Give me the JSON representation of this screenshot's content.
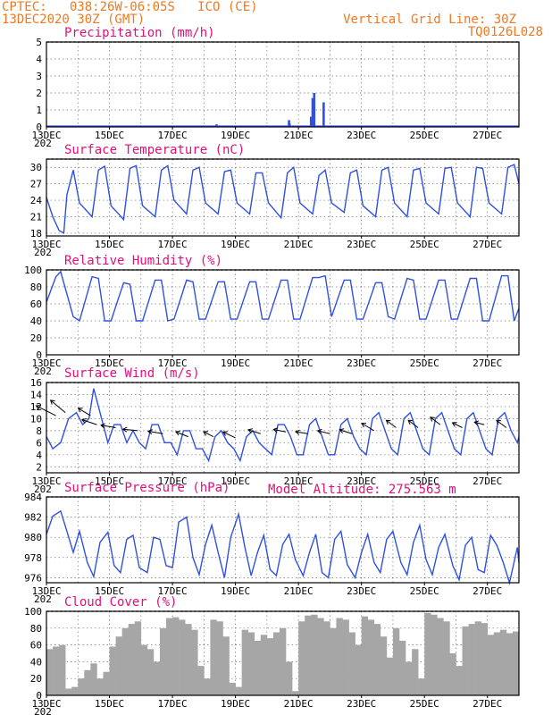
{
  "header": {
    "line1_left": "CPTEC:   038:26W-06:05S   ICO (CE)",
    "line2_left": "13DEC2020 30Z (GMT)",
    "line1_right": "Vertical Grid Line: 30Z",
    "line2_right": "TQ0126L028",
    "model_altitude": "Model Altitude: 275.563 m"
  },
  "x_axis": {
    "start_day": 13,
    "end_day": 28,
    "tick_labels": [
      {
        "day": 13,
        "label": "13DEC"
      },
      {
        "day": 15,
        "label": "15DEC"
      },
      {
        "day": 17,
        "label": "17DEC"
      },
      {
        "day": 19,
        "label": "19DEC"
      },
      {
        "day": 21,
        "label": "21DEC"
      },
      {
        "day": 23,
        "label": "23DEC"
      },
      {
        "day": 25,
        "label": "25DEC"
      },
      {
        "day": 27,
        "label": "27DEC"
      }
    ],
    "year_fragment": "202"
  },
  "colors": {
    "header": "#f07820",
    "title": "#e0107a",
    "line": "#3050e0",
    "bars": "#3050e0",
    "cloud": "#a6a6a6"
  },
  "chart_data": [
    {
      "type": "bar",
      "title": "Precipitation (mm/h)",
      "ylim": [
        0,
        5
      ],
      "yticks": [
        0,
        1,
        2,
        3,
        4,
        5
      ],
      "x": [
        13.2,
        14.0,
        15.5,
        17.0,
        18.4,
        19.3,
        20.7,
        20.72,
        21.4,
        21.45,
        21.5,
        21.8,
        22.9,
        23.4,
        24.8,
        25.6,
        26.6,
        27.3
      ],
      "values": [
        0.02,
        0.03,
        0.02,
        0.03,
        0.15,
        0.02,
        0.4,
        0.2,
        0.6,
        1.7,
        2.0,
        1.45,
        0.05,
        0.03,
        0.05,
        0.02,
        0.03,
        0.02
      ]
    },
    {
      "type": "line",
      "title": "Surface Temperature (nC)",
      "ylim": [
        17.5,
        31.5
      ],
      "yticks": [
        18,
        21,
        24,
        27,
        30
      ],
      "x": [
        13.0,
        13.2,
        13.4,
        13.55,
        13.65,
        13.85,
        14.05,
        14.45,
        14.65,
        14.85,
        15.05,
        15.45,
        15.65,
        15.85,
        16.05,
        16.45,
        16.65,
        16.85,
        17.05,
        17.45,
        17.65,
        17.85,
        18.05,
        18.45,
        18.65,
        18.85,
        19.05,
        19.45,
        19.65,
        19.85,
        20.05,
        20.45,
        20.65,
        20.85,
        21.05,
        21.45,
        21.65,
        21.85,
        22.05,
        22.45,
        22.65,
        22.85,
        23.05,
        23.45,
        23.65,
        23.85,
        24.05,
        24.45,
        24.65,
        24.85,
        25.05,
        25.45,
        25.65,
        25.85,
        26.05,
        26.45,
        26.65,
        26.85,
        27.05,
        27.45,
        27.65,
        27.85,
        28.0
      ],
      "values": [
        24.5,
        21.0,
        18.5,
        18.0,
        25.0,
        29.5,
        23.5,
        21.0,
        29.5,
        30.2,
        23.0,
        20.5,
        29.8,
        30.3,
        23.0,
        21.0,
        29.5,
        30.3,
        24.0,
        21.5,
        29.5,
        30.0,
        23.5,
        21.5,
        29.2,
        29.5,
        23.5,
        21.5,
        29.0,
        29.0,
        23.5,
        20.8,
        29.0,
        30.0,
        23.5,
        21.5,
        28.5,
        29.5,
        23.5,
        21.8,
        29.0,
        29.5,
        23.0,
        21.0,
        29.5,
        30.0,
        23.5,
        21.0,
        29.5,
        29.8,
        23.5,
        21.5,
        29.8,
        30.0,
        23.5,
        21.0,
        30.0,
        29.8,
        23.5,
        21.5,
        30.0,
        30.5,
        27.0
      ]
    },
    {
      "type": "line",
      "title": "Relative Humidity (%)",
      "ylim": [
        0,
        100
      ],
      "yticks": [
        0,
        20,
        40,
        60,
        80,
        100
      ],
      "x": [
        13.0,
        13.3,
        13.45,
        13.85,
        14.05,
        14.45,
        14.65,
        14.85,
        15.05,
        15.45,
        15.65,
        15.85,
        16.05,
        16.45,
        16.65,
        16.85,
        17.05,
        17.45,
        17.65,
        17.85,
        18.05,
        18.45,
        18.65,
        18.85,
        19.05,
        19.45,
        19.65,
        19.85,
        20.05,
        20.45,
        20.65,
        20.85,
        21.05,
        21.45,
        21.65,
        21.85,
        22.05,
        22.45,
        22.65,
        22.85,
        23.05,
        23.45,
        23.65,
        23.85,
        24.05,
        24.45,
        24.65,
        24.85,
        25.05,
        25.45,
        25.65,
        25.85,
        26.05,
        26.45,
        26.65,
        26.85,
        27.05,
        27.45,
        27.65,
        27.85,
        28.0
      ],
      "values": [
        62,
        92,
        98,
        45,
        40,
        92,
        90,
        40,
        40,
        85,
        83,
        40,
        40,
        88,
        88,
        40,
        42,
        88,
        86,
        42,
        42,
        86,
        86,
        42,
        42,
        86,
        86,
        42,
        42,
        88,
        88,
        42,
        42,
        91,
        91,
        93,
        45,
        88,
        88,
        42,
        42,
        85,
        85,
        45,
        42,
        90,
        88,
        42,
        42,
        88,
        88,
        42,
        42,
        90,
        90,
        40,
        40,
        93,
        93,
        40,
        55
      ]
    },
    {
      "type": "line",
      "title": "Surface Wind (m/s)",
      "ylim": [
        1,
        16
      ],
      "yticks": [
        2,
        4,
        6,
        8,
        10,
        12,
        14,
        16
      ],
      "x": [
        13.0,
        13.2,
        13.45,
        13.7,
        13.95,
        14.15,
        14.35,
        14.5,
        14.7,
        14.95,
        15.15,
        15.35,
        15.55,
        15.75,
        15.95,
        16.15,
        16.35,
        16.55,
        16.75,
        16.95,
        17.15,
        17.35,
        17.55,
        17.75,
        17.95,
        18.15,
        18.35,
        18.55,
        18.75,
        18.95,
        19.15,
        19.35,
        19.55,
        19.75,
        19.95,
        20.15,
        20.35,
        20.55,
        20.75,
        20.95,
        21.15,
        21.35,
        21.55,
        21.75,
        21.95,
        22.15,
        22.35,
        22.55,
        22.75,
        22.95,
        23.15,
        23.35,
        23.55,
        23.75,
        23.95,
        24.15,
        24.35,
        24.55,
        24.75,
        24.95,
        25.15,
        25.35,
        25.55,
        25.75,
        25.95,
        26.15,
        26.35,
        26.55,
        26.75,
        26.95,
        27.15,
        27.35,
        27.55,
        27.75,
        27.95,
        28.0
      ],
      "values": [
        7,
        5,
        6,
        10,
        11,
        9,
        10,
        15,
        11,
        6,
        9,
        9,
        6,
        8,
        6,
        5,
        9,
        9,
        6,
        6,
        4,
        8,
        8,
        5,
        5,
        3,
        7,
        8,
        6,
        5,
        3,
        7,
        8,
        6,
        5,
        4,
        9,
        9,
        7,
        4,
        4,
        9,
        10,
        7,
        4,
        4,
        9,
        10,
        7,
        5,
        4,
        10,
        11,
        8,
        5,
        4,
        10,
        11,
        8,
        5,
        4,
        10,
        11,
        8,
        5,
        4,
        10,
        11,
        8,
        5,
        4,
        10,
        11,
        8,
        6,
        7
      ],
      "vectors": [
        {
          "x": 13.3,
          "speed": 10.5,
          "u": -4,
          "v": 2
        },
        {
          "x": 13.6,
          "speed": 11,
          "u": -3,
          "v": 2.5
        },
        {
          "x": 14.4,
          "speed": 10.5,
          "u": -2.5,
          "v": 1.5
        },
        {
          "x": 14.6,
          "speed": 9,
          "u": -3,
          "v": 1
        },
        {
          "x": 15.2,
          "speed": 8.5,
          "u": -3,
          "v": 0.5
        },
        {
          "x": 15.9,
          "speed": 8,
          "u": -3,
          "v": 0.3
        },
        {
          "x": 16.7,
          "speed": 7.5,
          "u": -3,
          "v": 0.5
        },
        {
          "x": 17.5,
          "speed": 7,
          "u": -2.5,
          "v": 1
        },
        {
          "x": 18.3,
          "speed": 7,
          "u": -2,
          "v": 1
        },
        {
          "x": 19.0,
          "speed": 6.8,
          "u": -2.5,
          "v": 1.2
        },
        {
          "x": 19.8,
          "speed": 7.5,
          "u": -2.5,
          "v": 0.8
        },
        {
          "x": 20.6,
          "speed": 7.8,
          "u": -2.5,
          "v": 0.5
        },
        {
          "x": 21.3,
          "speed": 7.5,
          "u": -2.5,
          "v": 0.4
        },
        {
          "x": 22.0,
          "speed": 7.5,
          "u": -2.5,
          "v": 0.6
        },
        {
          "x": 22.7,
          "speed": 7.5,
          "u": -2.5,
          "v": 0.8
        },
        {
          "x": 23.4,
          "speed": 8,
          "u": -2.5,
          "v": 1.5
        },
        {
          "x": 24.1,
          "speed": 8.5,
          "u": -2,
          "v": 1.5
        },
        {
          "x": 24.8,
          "speed": 8.5,
          "u": -2,
          "v": 1.5
        },
        {
          "x": 25.5,
          "speed": 9,
          "u": -2,
          "v": 1.5
        },
        {
          "x": 26.2,
          "speed": 8.5,
          "u": -2,
          "v": 1
        },
        {
          "x": 26.9,
          "speed": 9,
          "u": -2,
          "v": 0.5
        },
        {
          "x": 27.6,
          "speed": 8.5,
          "u": -2,
          "v": 1.5
        }
      ]
    },
    {
      "type": "line",
      "title": "Surface Pressure (hPa)",
      "ylim": [
        975.5,
        984
      ],
      "yticks": [
        976,
        978,
        980,
        982,
        984
      ],
      "x": [
        13.0,
        13.2,
        13.45,
        13.65,
        13.85,
        14.05,
        14.3,
        14.5,
        14.7,
        14.95,
        15.15,
        15.35,
        15.55,
        15.75,
        15.95,
        16.2,
        16.4,
        16.6,
        16.8,
        17.0,
        17.2,
        17.45,
        17.65,
        17.85,
        18.05,
        18.25,
        18.45,
        18.65,
        18.85,
        19.1,
        19.3,
        19.5,
        19.7,
        19.9,
        20.1,
        20.3,
        20.5,
        20.7,
        20.9,
        21.15,
        21.35,
        21.55,
        21.75,
        21.95,
        22.15,
        22.35,
        22.55,
        22.8,
        23.0,
        23.2,
        23.4,
        23.6,
        23.8,
        24.0,
        24.25,
        24.45,
        24.65,
        24.85,
        25.05,
        25.25,
        25.45,
        25.65,
        25.9,
        26.1,
        26.3,
        26.5,
        26.7,
        26.9,
        27.1,
        27.3,
        27.5,
        27.7,
        27.95,
        28.0
      ],
      "values": [
        980.3,
        982.1,
        982.6,
        980.6,
        978.5,
        980.6,
        977.5,
        976.1,
        979.5,
        980.5,
        977.2,
        976.5,
        979.8,
        980.2,
        977.0,
        976.5,
        980.0,
        979.8,
        977.2,
        977.0,
        981.5,
        982.0,
        978.0,
        976.3,
        979.3,
        981.2,
        978.5,
        976.0,
        980.0,
        982.3,
        979.0,
        976.2,
        978.5,
        980.2,
        976.8,
        976.2,
        979.3,
        980.3,
        977.8,
        976.2,
        978.5,
        980.3,
        976.5,
        976.0,
        979.8,
        980.6,
        977.3,
        976.0,
        978.5,
        980.3,
        977.5,
        976.5,
        979.8,
        980.6,
        977.5,
        976.3,
        979.5,
        981.2,
        977.8,
        976.3,
        979.0,
        980.3,
        977.2,
        975.8,
        979.2,
        980.0,
        976.8,
        976.5,
        980.2,
        979.2,
        977.5,
        975.5,
        979.0,
        977.5
      ]
    },
    {
      "type": "area",
      "title": "Cloud Cover (%)",
      "ylim": [
        0,
        100
      ],
      "yticks": [
        0,
        20,
        40,
        60,
        80,
        100
      ],
      "x": [
        13.0,
        13.2,
        13.4,
        13.6,
        13.8,
        14.0,
        14.2,
        14.4,
        14.6,
        14.8,
        15.0,
        15.2,
        15.4,
        15.6,
        15.8,
        16.0,
        16.2,
        16.4,
        16.6,
        16.8,
        17.0,
        17.2,
        17.4,
        17.6,
        17.8,
        18.0,
        18.2,
        18.4,
        18.6,
        18.8,
        19.0,
        19.2,
        19.4,
        19.6,
        19.8,
        20.0,
        20.2,
        20.4,
        20.6,
        20.8,
        21.0,
        21.2,
        21.4,
        21.6,
        21.8,
        22.0,
        22.2,
        22.4,
        22.6,
        22.8,
        23.0,
        23.2,
        23.4,
        23.6,
        23.8,
        24.0,
        24.2,
        24.4,
        24.6,
        24.8,
        25.0,
        25.2,
        25.4,
        25.6,
        25.8,
        26.0,
        26.2,
        26.4,
        26.6,
        26.8,
        27.0,
        27.2,
        27.4,
        27.6,
        27.8,
        28.0
      ],
      "values": [
        55,
        58,
        60,
        8,
        10,
        20,
        30,
        38,
        20,
        28,
        58,
        70,
        80,
        85,
        88,
        60,
        55,
        40,
        80,
        92,
        93,
        90,
        85,
        78,
        35,
        20,
        90,
        88,
        70,
        15,
        10,
        78,
        75,
        65,
        72,
        68,
        75,
        80,
        40,
        5,
        88,
        95,
        96,
        92,
        88,
        80,
        92,
        90,
        75,
        60,
        94,
        90,
        85,
        70,
        45,
        80,
        65,
        40,
        55,
        20,
        98,
        96,
        92,
        88,
        50,
        35,
        82,
        85,
        88,
        86,
        72,
        75,
        78,
        74,
        76,
        78
      ]
    }
  ]
}
